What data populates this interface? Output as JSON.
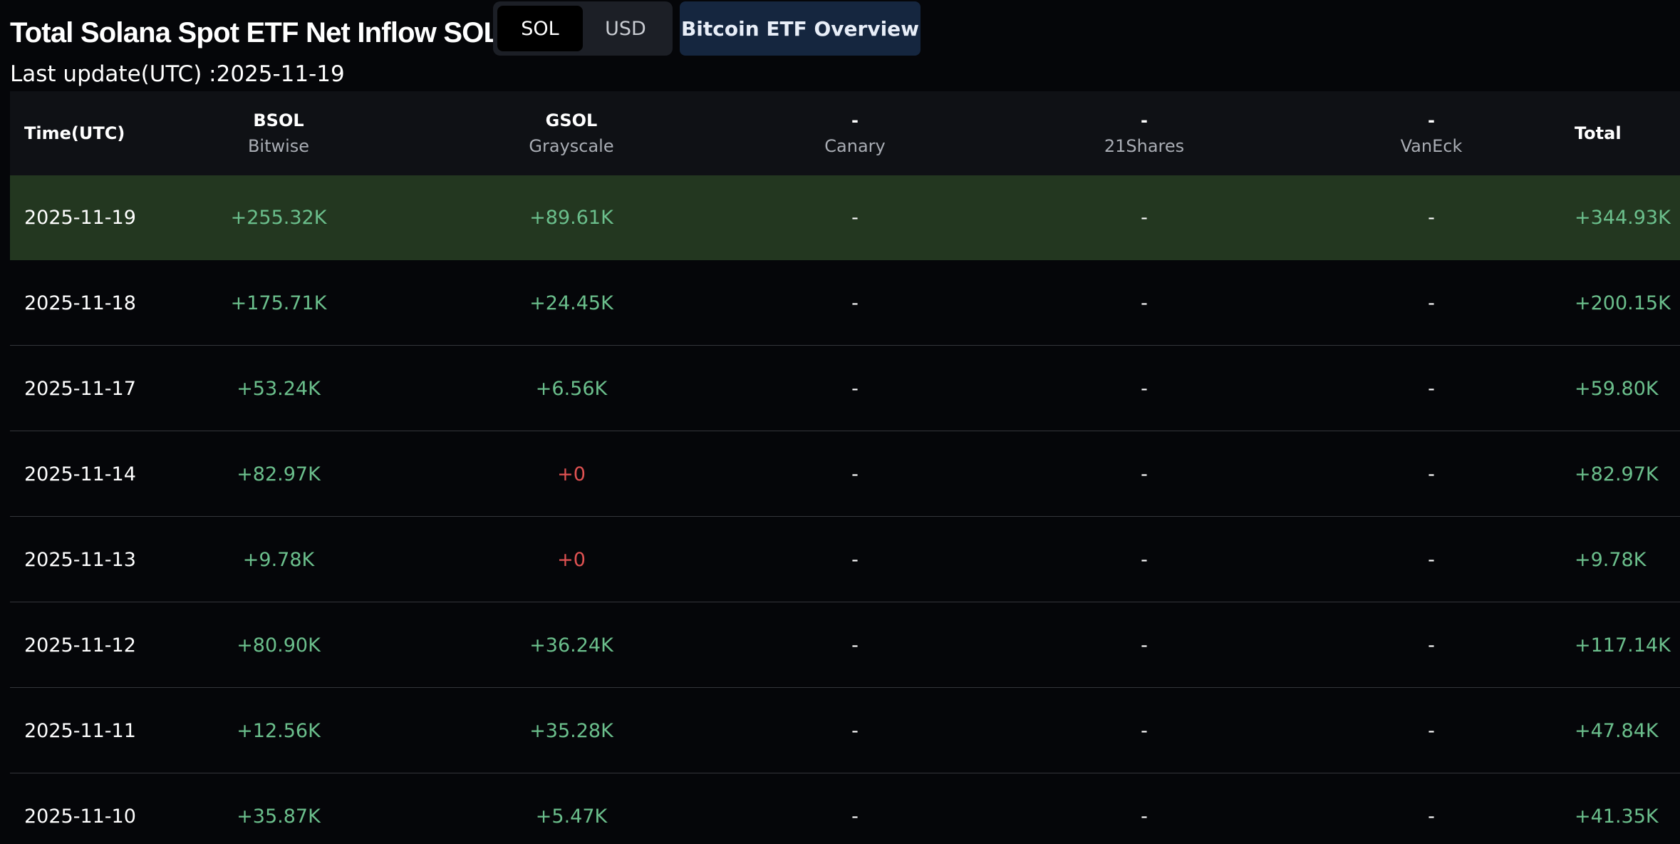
{
  "header": {
    "title": "Total Solana Spot ETF Net Inflow SOL",
    "toggle": [
      "SOL",
      "USD"
    ],
    "toggle_active": "SOL",
    "overview_button": "Bitcoin ETF Overview",
    "last_update": "Last update(UTC) :2025-11-19"
  },
  "table": {
    "columns": [
      {
        "ticker": "Time(UTC)",
        "issuer": ""
      },
      {
        "ticker": "BSOL",
        "issuer": "Bitwise"
      },
      {
        "ticker": "GSOL",
        "issuer": "Grayscale"
      },
      {
        "ticker": "-",
        "issuer": "Canary"
      },
      {
        "ticker": "-",
        "issuer": "21Shares"
      },
      {
        "ticker": "-",
        "issuer": "VanEck"
      },
      {
        "ticker": "Total",
        "issuer": ""
      }
    ],
    "rows": [
      {
        "date": "2025-11-19",
        "bsol": "+255.32K",
        "gsol": "+89.61K",
        "canary": "-",
        "shares21": "-",
        "vaneck": "-",
        "total": "+344.93K"
      },
      {
        "date": "2025-11-18",
        "bsol": "+175.71K",
        "gsol": "+24.45K",
        "canary": "-",
        "shares21": "-",
        "vaneck": "-",
        "total": "+200.15K"
      },
      {
        "date": "2025-11-17",
        "bsol": "+53.24K",
        "gsol": "+6.56K",
        "canary": "-",
        "shares21": "-",
        "vaneck": "-",
        "total": "+59.80K"
      },
      {
        "date": "2025-11-14",
        "bsol": "+82.97K",
        "gsol": "+0",
        "canary": "-",
        "shares21": "-",
        "vaneck": "-",
        "total": "+82.97K"
      },
      {
        "date": "2025-11-13",
        "bsol": "+9.78K",
        "gsol": "+0",
        "canary": "-",
        "shares21": "-",
        "vaneck": "-",
        "total": "+9.78K"
      },
      {
        "date": "2025-11-12",
        "bsol": "+80.90K",
        "gsol": "+36.24K",
        "canary": "-",
        "shares21": "-",
        "vaneck": "-",
        "total": "+117.14K"
      },
      {
        "date": "2025-11-11",
        "bsol": "+12.56K",
        "gsol": "+35.28K",
        "canary": "-",
        "shares21": "-",
        "vaneck": "-",
        "total": "+47.84K"
      },
      {
        "date": "2025-11-10",
        "bsol": "+35.87K",
        "gsol": "+5.47K",
        "canary": "-",
        "shares21": "-",
        "vaneck": "-",
        "total": "+41.35K"
      }
    ]
  },
  "colors": {
    "background": "#050609",
    "header_bg": "#0f1115",
    "highlight_row": "#233720",
    "positive": "#6bbf8c",
    "zero": "#e05252",
    "overview_button_bg": "#15263f"
  }
}
